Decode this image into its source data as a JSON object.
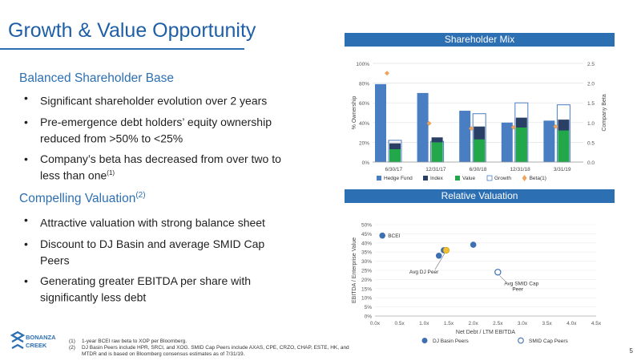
{
  "title": "Growth & Value Opportunity",
  "sections": [
    {
      "heading": "Balanced Shareholder Base",
      "heading_sup": "",
      "bullets": [
        {
          "text": "Significant shareholder evolution over 2 years",
          "sup": ""
        },
        {
          "text": "Pre-emergence debt holders’ equity ownership reduced from >50% to <25%",
          "sup": ""
        },
        {
          "text": "Company’s beta has decreased from over two to less than one",
          "sup": "(1)"
        }
      ]
    },
    {
      "heading": "Compelling Valuation",
      "heading_sup": "(2)",
      "bullets": [
        {
          "text": "Attractive valuation with strong balance sheet",
          "sup": ""
        },
        {
          "text": "Discount to DJ Basin and average SMID Cap Peers",
          "sup": ""
        },
        {
          "text": "Generating greater EBITDA per share with significantly less debt",
          "sup": ""
        }
      ]
    }
  ],
  "panels": {
    "shareholder_mix": "Shareholder Mix",
    "relative_valuation": "Relative Valuation"
  },
  "colors": {
    "brand_blue": "#2d6fb3",
    "hedge_fund": "#4a7ec2",
    "index": "#2a3f66",
    "value": "#22a84a",
    "growth_outline": "#4a7ec2",
    "beta": "#f0a35a",
    "dj_basin": "#3d6fb3",
    "bcei_yellow": "#f2c02e",
    "smid_outline": "#3d6fb3"
  },
  "chart_data": [
    {
      "type": "bar",
      "categories": [
        "6/30/17",
        "12/31/17",
        "6/30/18",
        "12/31/18",
        "3/31/19"
      ],
      "series": [
        {
          "name": "Hedge Fund",
          "values": [
            79,
            70,
            52,
            40,
            42
          ]
        },
        {
          "name": "Index",
          "values": [
            19,
            25,
            36,
            45,
            43
          ]
        },
        {
          "name": "Value",
          "values": [
            13,
            20,
            23,
            35,
            32
          ]
        },
        {
          "name": "Growth",
          "values": [
            22,
            21,
            49,
            60,
            58
          ]
        },
        {
          "name": "Beta(1)",
          "axis": "right",
          "type": "marker",
          "values": [
            2.25,
            0.98,
            0.85,
            0.88,
            0.9
          ]
        }
      ],
      "ylabel": "% Ownership",
      "ylabel_right": "Company Beta",
      "ylim": [
        0,
        100
      ],
      "ylim_right": [
        0,
        2.5
      ],
      "yticks": [
        "0%",
        "20%",
        "40%",
        "60%",
        "80%",
        "100%"
      ],
      "yticks_right": [
        "0.0",
        "0.5",
        "1.0",
        "1.5",
        "2.0",
        "2.5"
      ],
      "legend_position": "bottom"
    },
    {
      "type": "scatter",
      "xlabel": "Net Debt / LTM EBITDA",
      "ylabel": "EBITDA / Enterprise Value",
      "xlim": [
        0,
        4.5
      ],
      "ylim": [
        0,
        50
      ],
      "xticks": [
        "0.0x",
        "0.5x",
        "1.0x",
        "1.5x",
        "2.0x",
        "2.5x",
        "3.0x",
        "3.5x",
        "4.0x",
        "4.5x"
      ],
      "yticks": [
        "0%",
        "5%",
        "10%",
        "15%",
        "20%",
        "25%",
        "30%",
        "35%",
        "40%",
        "45%",
        "50%"
      ],
      "series": [
        {
          "name": "DJ Basin Peers",
          "points": [
            [
              0.15,
              44
            ],
            [
              1.4,
              36
            ],
            [
              1.3,
              33
            ],
            [
              2.0,
              39
            ]
          ]
        },
        {
          "name": "SMID Cap Peers",
          "points": [
            [
              2.5,
              24
            ]
          ]
        },
        {
          "name": "Avg DJ Peer",
          "points": [
            [
              1.45,
              36
            ]
          ]
        }
      ],
      "annotations": [
        {
          "text": "BCEI",
          "x": 0.15,
          "y": 44
        },
        {
          "text": "Avg DJ Peer",
          "x": 1.45,
          "y": 36
        },
        {
          "text": "Avg SMID Cap Peer",
          "x": 2.5,
          "y": 24
        }
      ],
      "legend_position": "bottom"
    }
  ],
  "footnotes": [
    {
      "num": "(1)",
      "text": "1-year BCEI raw beta to XOP per Bloomberg."
    },
    {
      "num": "(2)",
      "text": "DJ Basin Peers include HPR, SRCI, and XOG. SMID Cap Peers include AXAS, CPE, CRZO, CHAP, ESTE, HK, and MTDR and is based on Bloomberg consensus estimates as of 7/31/19."
    }
  ],
  "logo": {
    "line1": "BONANZA",
    "line2": "CREEK"
  },
  "page_number": "5"
}
